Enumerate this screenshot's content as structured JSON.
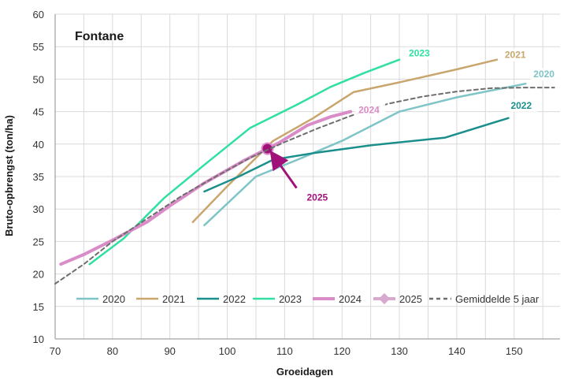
{
  "chart_data": {
    "type": "line",
    "title": "Fontane",
    "xlabel": "Groeidagen",
    "ylabel": "Bruto-opbrengst (ton/ha)",
    "xlim": [
      70,
      158
    ],
    "ylim": [
      10,
      60
    ],
    "xticks": [
      70,
      80,
      90,
      100,
      110,
      120,
      130,
      140,
      150
    ],
    "yticks": [
      10,
      15,
      20,
      25,
      30,
      35,
      40,
      45,
      50,
      55,
      60
    ],
    "grid": true,
    "legend_position": "bottom-inside",
    "series": [
      {
        "name": "2020",
        "color": "#7fc4c6",
        "width": 2.5,
        "dash": "",
        "label": "2020",
        "points": [
          [
            96,
            27.5
          ],
          [
            105,
            35
          ],
          [
            112,
            37.5
          ],
          [
            120,
            40.5
          ],
          [
            130,
            45
          ],
          [
            140,
            47.2
          ],
          [
            152,
            49.3
          ]
        ]
      },
      {
        "name": "2021",
        "color": "#c9a66e",
        "width": 2.5,
        "dash": "",
        "label": "2021",
        "points": [
          [
            94,
            28
          ],
          [
            100,
            33.5
          ],
          [
            108,
            40.5
          ],
          [
            115,
            44
          ],
          [
            122,
            48
          ],
          [
            130,
            49.5
          ],
          [
            140,
            51.5
          ],
          [
            147,
            53
          ]
        ]
      },
      {
        "name": "2022",
        "color": "#1b8f8c",
        "width": 2.5,
        "dash": "",
        "label": "2022",
        "points": [
          [
            96,
            32.7
          ],
          [
            102,
            35
          ],
          [
            108,
            37.6
          ],
          [
            115,
            38.6
          ],
          [
            125,
            39.8
          ],
          [
            138,
            41
          ],
          [
            149,
            44
          ]
        ]
      },
      {
        "name": "2023",
        "color": "#2fe0a0",
        "width": 2.5,
        "dash": "",
        "label": "2023",
        "points": [
          [
            76,
            21.5
          ],
          [
            82,
            25.5
          ],
          [
            89,
            31.7
          ],
          [
            96,
            36.8
          ],
          [
            104,
            42.5
          ],
          [
            112,
            46
          ],
          [
            118,
            48.8
          ],
          [
            124,
            51
          ],
          [
            130,
            53
          ]
        ]
      },
      {
        "name": "2024",
        "color": "#d98cc8",
        "width": 4,
        "dash": "",
        "label": "2024",
        "points": [
          [
            71,
            21.5
          ],
          [
            75,
            23
          ],
          [
            80,
            25.2
          ],
          [
            86,
            28
          ],
          [
            90,
            30.5
          ],
          [
            96,
            34
          ],
          [
            103,
            37.5
          ],
          [
            109,
            40.2
          ],
          [
            114,
            42.9
          ],
          [
            118,
            44.2
          ],
          [
            121.5,
            45
          ]
        ]
      },
      {
        "name": "2025",
        "color": "#a0127a",
        "width": 3,
        "dash": "",
        "label": "2025",
        "points": [
          [
            107,
            39.3
          ]
        ]
      },
      {
        "name": "Gemiddelde  5 jaar",
        "color": "#6e6e6e",
        "width": 2,
        "dash": "5,4",
        "label": "",
        "points": [
          [
            70,
            18.5
          ],
          [
            75,
            21.5
          ],
          [
            80,
            25
          ],
          [
            86,
            28.5
          ],
          [
            92,
            32
          ],
          [
            98,
            35
          ],
          [
            104,
            37.9
          ],
          [
            110,
            40.3
          ],
          [
            116,
            42.5
          ],
          [
            122,
            44.5
          ],
          [
            128,
            46.2
          ],
          [
            134,
            47.3
          ],
          [
            140,
            48.1
          ],
          [
            146,
            48.6
          ],
          [
            152,
            48.7
          ],
          [
            157,
            48.7
          ]
        ]
      }
    ],
    "annotation": {
      "text": "2025",
      "x": 107,
      "y": 39.3,
      "color": "#a0127a"
    }
  },
  "legend": {
    "items": [
      {
        "name": "2020",
        "marker": false
      },
      {
        "name": "2021",
        "marker": false
      },
      {
        "name": "2022",
        "marker": false
      },
      {
        "name": "2023",
        "marker": false
      },
      {
        "name": "2024",
        "marker": false
      },
      {
        "name": "2025",
        "marker": true
      },
      {
        "name": "Gemiddelde  5 jaar",
        "marker": false
      }
    ]
  }
}
